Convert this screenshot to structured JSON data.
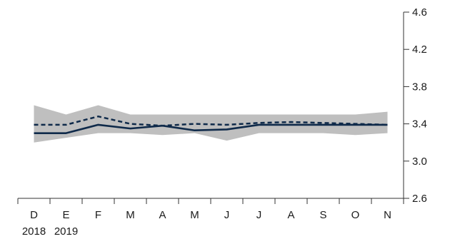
{
  "chart_data": {
    "type": "line",
    "categories": [
      "D",
      "E",
      "F",
      "M",
      "A",
      "M",
      "J",
      "J",
      "A",
      "S",
      "O",
      "N"
    ],
    "year_labels": [
      "2018",
      "2019"
    ],
    "ylim": [
      2.6,
      4.6
    ],
    "yticks": [
      "2.6",
      "3.0",
      "3.4",
      "3.8",
      "4.2",
      "4.6"
    ],
    "y_axis_position": "right",
    "grid": false,
    "legend": "none",
    "band": {
      "lower": [
        3.2,
        3.25,
        3.3,
        3.3,
        3.28,
        3.3,
        3.22,
        3.3,
        3.3,
        3.3,
        3.28,
        3.3
      ],
      "upper": [
        3.6,
        3.5,
        3.6,
        3.5,
        3.5,
        3.5,
        3.5,
        3.5,
        3.5,
        3.5,
        3.5,
        3.53
      ]
    },
    "series": [
      {
        "style": "solid",
        "values": [
          3.3,
          3.3,
          3.39,
          3.35,
          3.38,
          3.33,
          3.34,
          3.39,
          3.39,
          3.39,
          3.39,
          3.39
        ]
      },
      {
        "style": "dashed",
        "values": [
          3.39,
          3.39,
          3.48,
          3.4,
          3.38,
          3.4,
          3.39,
          3.41,
          3.42,
          3.41,
          3.4,
          3.39
        ]
      }
    ],
    "colors": {
      "band": "#bfbfbf",
      "line": "#0f2a4a",
      "axis": "#333333"
    }
  }
}
